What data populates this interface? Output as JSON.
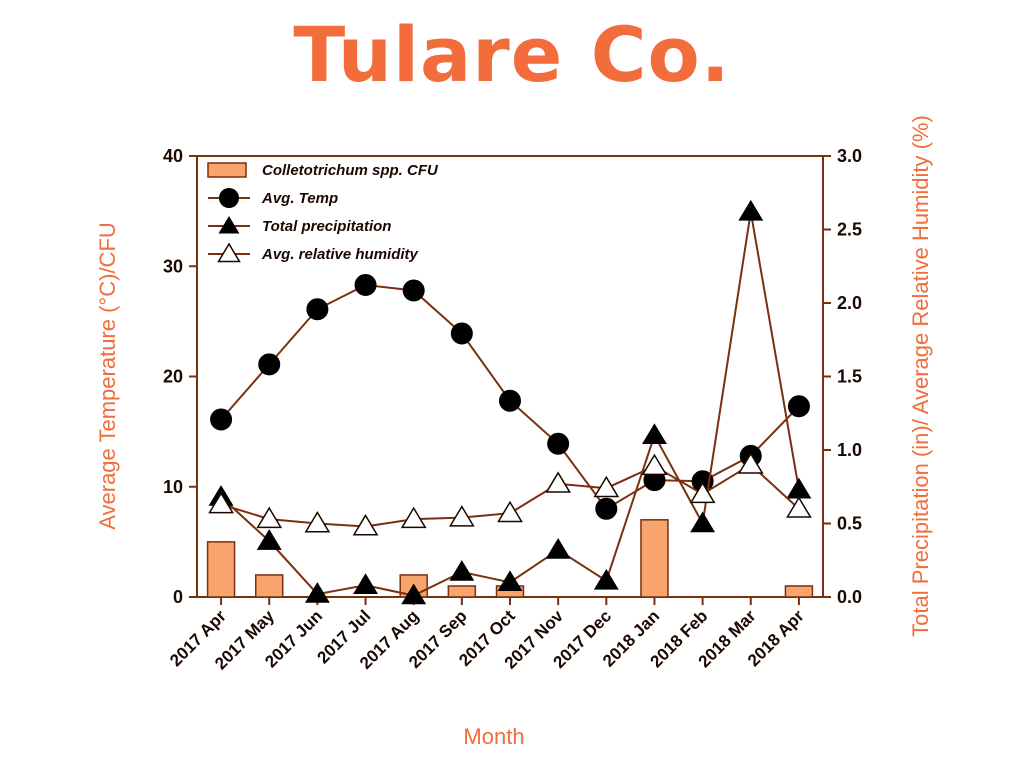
{
  "title": "Tulare Co.",
  "chart_data": {
    "type": "bar",
    "xlabel": "Month",
    "ylabel_left": "Average Temperature (°C)/CFU",
    "ylabel_right": "Total Precipitation (in)/ Average Relative Humidity (%)",
    "categories": [
      "2017 Apr",
      "2017 May",
      "2017 Jun",
      "2017 Jul",
      "2017 Aug",
      "2017 Sep",
      "2017 Oct",
      "2017 Nov",
      "2017 Dec",
      "2018 Jan",
      "2018 Feb",
      "2018 Mar",
      "2018 Apr"
    ],
    "ylim_left": [
      0,
      40
    ],
    "yticks_left": [
      "0",
      "10",
      "20",
      "30",
      "40"
    ],
    "ylim_right": [
      0,
      3.0
    ],
    "yticks_right": [
      "0.0",
      "0.5",
      "1.0",
      "1.5",
      "2.0",
      "2.5",
      "3.0"
    ],
    "legend_position": "top-left",
    "series": [
      {
        "name": "Colletotrichum spp. CFU",
        "type": "bar",
        "axis": "left",
        "color": "#f9a36d",
        "values": [
          5,
          2,
          0,
          0,
          2,
          1,
          1,
          0,
          0,
          7,
          0,
          0,
          1
        ]
      },
      {
        "name": "Avg. Temp",
        "type": "line",
        "axis": "left",
        "marker": "filled-circle",
        "values": [
          16.1,
          21.1,
          26.1,
          28.3,
          27.8,
          23.9,
          17.8,
          13.9,
          8.0,
          10.6,
          10.5,
          12.8,
          17.3
        ]
      },
      {
        "name": "Total precipitation",
        "type": "line",
        "axis": "right",
        "marker": "filled-triangle",
        "values": [
          0.68,
          0.38,
          0.02,
          0.08,
          0.01,
          0.17,
          0.1,
          0.32,
          0.11,
          1.1,
          0.5,
          2.62,
          0.73
        ]
      },
      {
        "name": "Avg. relative humidity",
        "type": "line",
        "axis": "right",
        "marker": "open-triangle",
        "values": [
          0.63,
          0.53,
          0.5,
          0.48,
          0.53,
          0.54,
          0.57,
          0.77,
          0.74,
          0.89,
          0.7,
          0.9,
          0.6
        ]
      }
    ],
    "colors": {
      "line": "#7a2f0e",
      "marker": "#000000",
      "axis_title": "#f26c3c",
      "title": "#f26c3c"
    }
  }
}
